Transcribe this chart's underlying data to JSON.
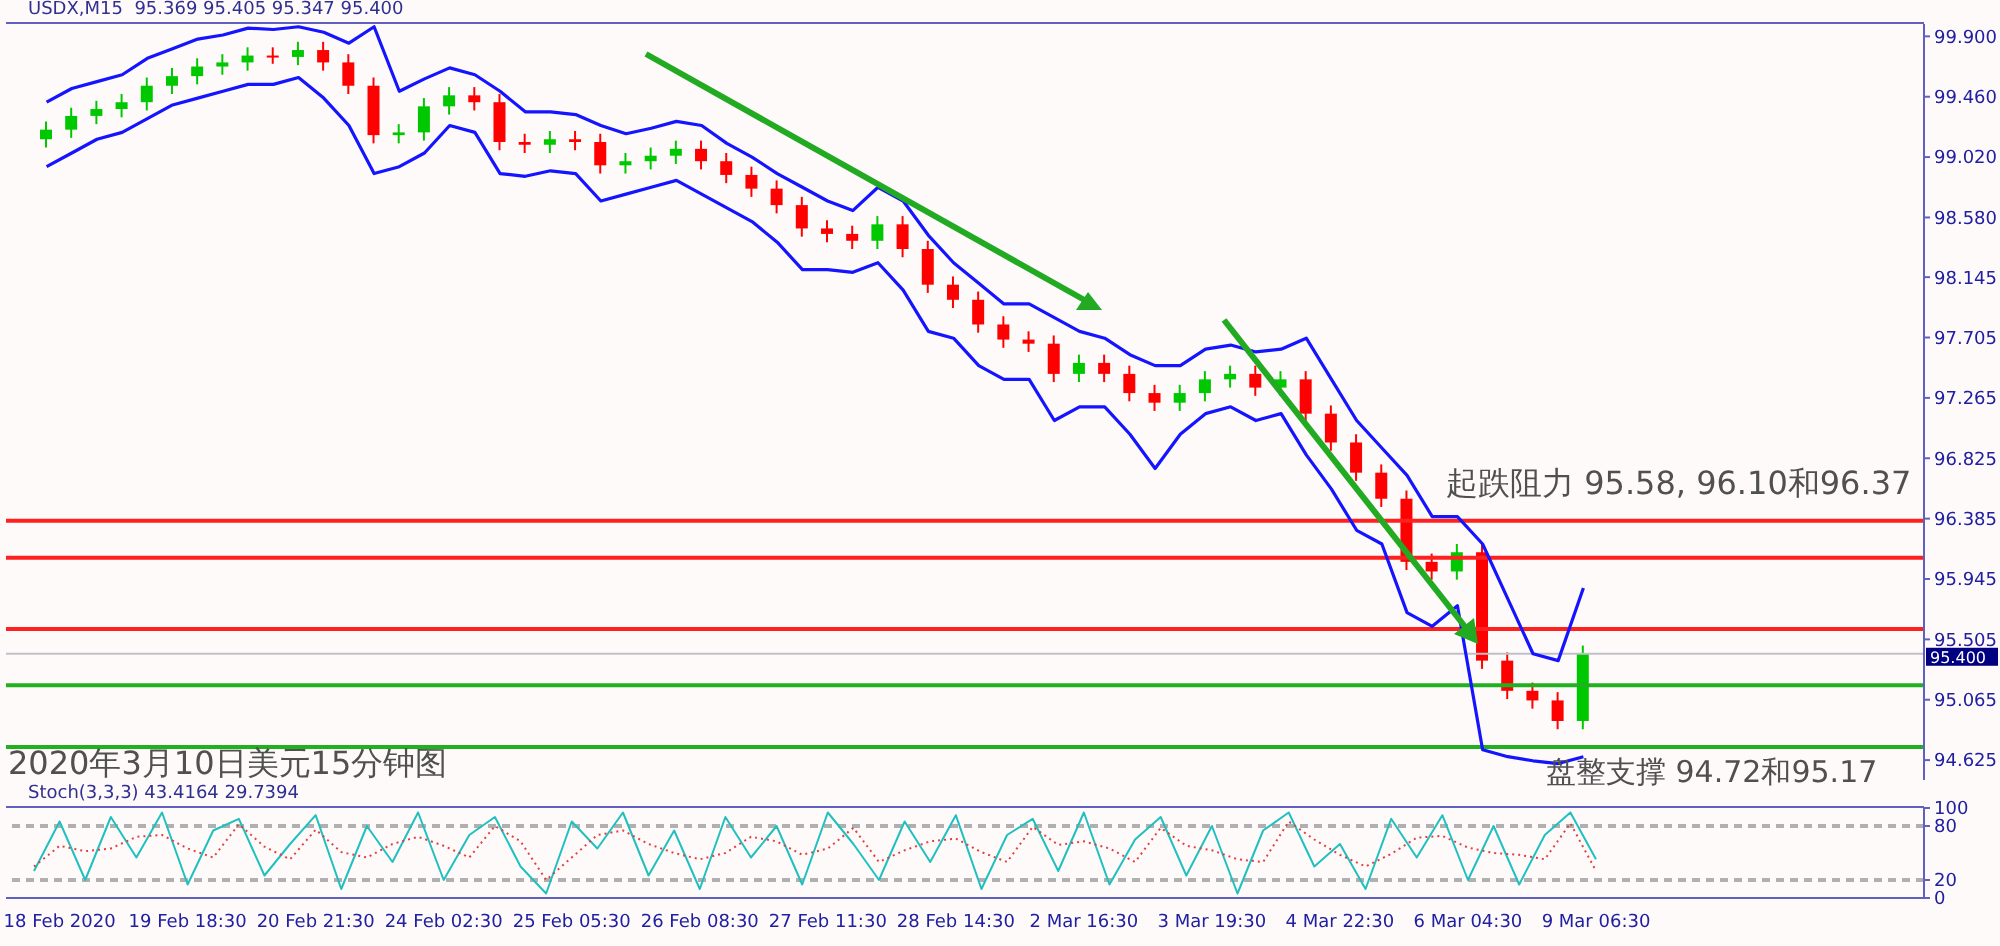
{
  "chart_data": [
    {
      "type": "candlestick",
      "title": "USDX,M15  95.369 95.405 95.347 95.400",
      "categories": [
        null,
        null,
        null,
        null,
        null,
        null,
        null,
        null,
        null,
        null,
        null,
        null,
        null,
        null,
        null,
        null,
        null,
        null,
        null,
        null,
        null,
        null,
        null,
        null,
        null,
        null,
        null,
        null,
        null,
        null,
        null,
        null,
        null,
        null,
        null,
        null,
        null,
        null,
        null,
        null,
        null,
        null,
        null,
        null,
        null,
        null,
        null,
        null,
        null,
        null,
        null,
        null,
        null,
        null,
        null,
        null,
        null,
        null,
        null,
        null,
        null,
        null
      ],
      "ohlc": [
        [
          99.15,
          99.28,
          99.09,
          99.22
        ],
        [
          99.22,
          99.38,
          99.16,
          99.32
        ],
        [
          99.32,
          99.43,
          99.26,
          99.37
        ],
        [
          99.37,
          99.48,
          99.31,
          99.42
        ],
        [
          99.42,
          99.6,
          99.36,
          99.54
        ],
        [
          99.54,
          99.67,
          99.48,
          99.61
        ],
        [
          99.61,
          99.74,
          99.55,
          99.68
        ],
        [
          99.68,
          99.77,
          99.62,
          99.71
        ],
        [
          99.71,
          99.82,
          99.65,
          99.76
        ],
        [
          99.76,
          99.82,
          99.7,
          99.75
        ],
        [
          99.75,
          99.86,
          99.69,
          99.8
        ],
        [
          99.8,
          99.86,
          99.65,
          99.71
        ],
        [
          99.71,
          99.77,
          99.48,
          99.54
        ],
        [
          99.54,
          99.6,
          99.12,
          99.18
        ],
        [
          99.18,
          99.26,
          99.12,
          99.2
        ],
        [
          99.2,
          99.45,
          99.14,
          99.39
        ],
        [
          99.39,
          99.53,
          99.33,
          99.47
        ],
        [
          99.47,
          99.53,
          99.36,
          99.42
        ],
        [
          99.42,
          99.48,
          99.07,
          99.13
        ],
        [
          99.13,
          99.19,
          99.05,
          99.11
        ],
        [
          99.11,
          99.21,
          99.05,
          99.15
        ],
        [
          99.15,
          99.21,
          99.07,
          99.13
        ],
        [
          99.13,
          99.19,
          98.9,
          98.96
        ],
        [
          98.96,
          99.05,
          98.9,
          98.99
        ],
        [
          98.99,
          99.09,
          98.93,
          99.03
        ],
        [
          99.03,
          99.14,
          98.97,
          99.08
        ],
        [
          99.08,
          99.14,
          98.93,
          98.99
        ],
        [
          98.99,
          99.05,
          98.83,
          98.89
        ],
        [
          98.89,
          98.95,
          98.73,
          98.79
        ],
        [
          98.79,
          98.85,
          98.61,
          98.67
        ],
        [
          98.67,
          98.73,
          98.44,
          98.5
        ],
        [
          98.5,
          98.56,
          98.4,
          98.46
        ],
        [
          98.46,
          98.52,
          98.35,
          98.41
        ],
        [
          98.41,
          98.59,
          98.35,
          98.53
        ],
        [
          98.53,
          98.59,
          98.29,
          98.35
        ],
        [
          98.35,
          98.41,
          98.03,
          98.09
        ],
        [
          98.09,
          98.15,
          97.92,
          97.98
        ],
        [
          97.98,
          98.04,
          97.74,
          97.8
        ],
        [
          97.8,
          97.86,
          97.63,
          97.69
        ],
        [
          97.69,
          97.75,
          97.6,
          97.66
        ],
        [
          97.66,
          97.72,
          97.38,
          97.44
        ],
        [
          97.44,
          97.58,
          97.38,
          97.52
        ],
        [
          97.52,
          97.58,
          97.38,
          97.44
        ],
        [
          97.44,
          97.5,
          97.24,
          97.3
        ],
        [
          97.3,
          97.36,
          97.17,
          97.23
        ],
        [
          97.23,
          97.36,
          97.17,
          97.3
        ],
        [
          97.3,
          97.46,
          97.24,
          97.4
        ],
        [
          97.4,
          97.5,
          97.34,
          97.44
        ],
        [
          97.44,
          97.5,
          97.28,
          97.34
        ],
        [
          97.34,
          97.46,
          97.28,
          97.4
        ],
        [
          97.4,
          97.46,
          97.09,
          97.15
        ],
        [
          97.15,
          97.21,
          96.88,
          96.94
        ],
        [
          96.94,
          97.0,
          96.66,
          96.72
        ],
        [
          96.72,
          96.78,
          96.47,
          96.53
        ],
        [
          96.53,
          96.59,
          96.01,
          96.07
        ],
        [
          96.07,
          96.13,
          95.94,
          96.0
        ],
        [
          96.0,
          96.2,
          95.94,
          96.14
        ],
        [
          96.14,
          96.2,
          95.29,
          95.35
        ],
        [
          95.35,
          95.41,
          95.07,
          95.13
        ],
        [
          95.13,
          95.19,
          95.0,
          95.06
        ],
        [
          95.06,
          95.12,
          94.85,
          94.91
        ],
        [
          94.91,
          95.46,
          94.85,
          95.4
        ]
      ],
      "colors": [
        "#00c800",
        "#00c800",
        "#00c800",
        "#00c800",
        "#00c800",
        "#00c800",
        "#00c800",
        "#00c800",
        "#00c800",
        "#ff0000",
        "#00c800",
        "#ff0000",
        "#ff0000",
        "#ff0000",
        "#00c800",
        "#00c800",
        "#00c800",
        "#ff0000",
        "#ff0000",
        "#ff0000",
        "#00c800",
        "#ff0000",
        "#ff0000",
        "#00c800",
        "#00c800",
        "#00c800",
        "#ff0000",
        "#ff0000",
        "#ff0000",
        "#ff0000",
        "#ff0000",
        "#ff0000",
        "#ff0000",
        "#00c800",
        "#ff0000",
        "#ff0000",
        "#ff0000",
        "#ff0000",
        "#ff0000",
        "#ff0000",
        "#ff0000",
        "#00c800",
        "#ff0000",
        "#ff0000",
        "#ff0000",
        "#00c800",
        "#00c800",
        "#00c800",
        "#ff0000",
        "#00c800",
        "#ff0000",
        "#ff0000",
        "#ff0000",
        "#ff0000",
        "#ff0000",
        "#ff0000",
        "#00c800",
        "#ff0000",
        "#ff0000",
        "#ff0000",
        "#ff0000",
        "#00c800"
      ],
      "series": [
        {
          "type": "line",
          "color": "#1414ff",
          "values": [
            99.42,
            99.52,
            99.57,
            99.62,
            99.74,
            99.81,
            99.88,
            99.91,
            99.96,
            99.95,
            99.97,
            99.93,
            99.85,
            99.97,
            99.5,
            99.59,
            99.67,
            99.62,
            99.5,
            99.35,
            99.35,
            99.33,
            99.25,
            99.19,
            99.23,
            99.28,
            99.25,
            99.12,
            99.02,
            98.9,
            98.8,
            98.7,
            98.63,
            98.8,
            98.7,
            98.45,
            98.25,
            98.1,
            97.95,
            97.95,
            97.85,
            97.75,
            97.7,
            97.58,
            97.5,
            97.5,
            97.62,
            97.65,
            97.6,
            97.62,
            97.7,
            97.4,
            97.1,
            96.9,
            96.7,
            96.4,
            96.4,
            96.2,
            95.8,
            95.4,
            95.35,
            95.88
          ]
        },
        {
          "type": "line",
          "color": "#1414ff",
          "values": [
            98.95,
            99.05,
            99.15,
            99.2,
            99.3,
            99.4,
            99.45,
            99.5,
            99.55,
            99.55,
            99.6,
            99.45,
            99.25,
            98.9,
            98.95,
            99.05,
            99.25,
            99.2,
            98.9,
            98.88,
            98.92,
            98.9,
            98.7,
            98.75,
            98.8,
            98.85,
            98.75,
            98.65,
            98.55,
            98.4,
            98.2,
            98.2,
            98.18,
            98.25,
            98.05,
            97.75,
            97.7,
            97.5,
            97.4,
            97.4,
            97.1,
            97.2,
            97.2,
            97.0,
            96.75,
            97.0,
            97.15,
            97.2,
            97.1,
            97.15,
            96.85,
            96.6,
            96.3,
            96.2,
            95.7,
            95.6,
            95.75,
            94.7,
            94.65,
            94.62,
            94.6,
            94.65
          ]
        }
      ],
      "ylim": [
        94.48,
        99.99
      ],
      "yticks": [
        {
          "value": 94.625,
          "label": "94.625"
        },
        {
          "value": 95.065,
          "label": "95.065"
        },
        {
          "value": 95.505,
          "label": "95.505"
        },
        {
          "value": 95.945,
          "label": "95.945"
        },
        {
          "value": 96.385,
          "label": "96.385"
        },
        {
          "value": 96.825,
          "label": "96.825"
        },
        {
          "value": 97.265,
          "label": "97.265"
        },
        {
          "value": 97.705,
          "label": "97.705"
        },
        {
          "value": 98.145,
          "label": "98.145"
        },
        {
          "value": 98.58,
          "label": "98.580"
        },
        {
          "value": 99.02,
          "label": "99.020"
        },
        {
          "value": 99.46,
          "label": "99.460"
        },
        {
          "value": 99.9,
          "label": "99.900"
        }
      ],
      "tick_labels": "y",
      "ref_lines": [
        {
          "axis": "y",
          "value": 96.37,
          "color": "#ff2020"
        },
        {
          "axis": "y",
          "value": 96.1,
          "color": "#ff2020"
        },
        {
          "axis": "y",
          "value": 95.58,
          "color": "#ff2020"
        },
        {
          "axis": "y",
          "value": 95.17,
          "color": "#20b020"
        },
        {
          "axis": "y",
          "value": 94.72,
          "color": "#20b020"
        },
        {
          "axis": "y",
          "value": 95.4,
          "color": "#c0c0c8",
          "label": "95.400"
        }
      ],
      "annotations": [
        "起跌阻力 95.58, 96.10和96.37",
        "盘整支撑 94.72和95.17",
        "2020年3月10日美元15分钟图"
      ]
    },
    {
      "type": "line",
      "title": "Stoch(3,3,3) 43.4164 29.7394",
      "categories": [
        null,
        "18 Feb 2020",
        null,
        null,
        null,
        null,
        "19 Feb 18:30",
        null,
        null,
        null,
        null,
        "20 Feb 21:30",
        null,
        null,
        null,
        null,
        "24 Feb 02:30",
        null,
        null,
        null,
        null,
        "25 Feb 05:30",
        null,
        null,
        null,
        null,
        "26 Feb 08:30",
        null,
        null,
        null,
        null,
        "27 Feb 11:30",
        null,
        null,
        null,
        null,
        "28 Feb 14:30",
        null,
        null,
        null,
        null,
        "2 Mar 16:30",
        null,
        null,
        null,
        null,
        "3 Mar 19:30",
        null,
        null,
        null,
        null,
        "4 Mar 22:30",
        null,
        null,
        null,
        null,
        "6 Mar 04:30",
        null,
        null,
        null,
        null,
        "9 Mar 06:30"
      ],
      "series": [
        {
          "color": "#20c0c0",
          "line_style": "solid",
          "values": [
            30,
            85,
            20,
            90,
            45,
            95,
            15,
            75,
            88,
            25,
            60,
            92,
            10,
            80,
            40,
            95,
            20,
            70,
            90,
            35,
            5,
            85,
            55,
            95,
            25,
            75,
            10,
            90,
            45,
            80,
            15,
            95,
            60,
            20,
            85,
            40,
            92,
            10,
            70,
            88,
            30,
            95,
            15,
            65,
            90,
            25,
            80,
            5,
            75,
            95,
            35,
            60,
            10,
            88,
            45,
            92,
            20,
            80,
            15,
            70,
            95,
            43
          ]
        },
        {
          "color": "#e04040",
          "line_style": "dotted",
          "values": [
            35,
            58,
            52,
            55,
            68,
            70,
            55,
            45,
            82,
            57,
            43,
            76,
            51,
            45,
            60,
            68,
            58,
            45,
            80,
            63,
            20,
            45,
            70,
            75,
            60,
            50,
            43,
            50,
            68,
            63,
            48,
            55,
            78,
            40,
            53,
            63,
            66,
            51,
            40,
            79,
            59,
            63,
            55,
            40,
            78,
            58,
            53,
            43,
            40,
            85,
            65,
            48,
            35,
            49,
            67,
            69,
            56,
            50,
            48,
            43,
            83,
            30
          ]
        }
      ],
      "ylim": [
        0,
        100
      ],
      "yticks": [
        0,
        20,
        80,
        100
      ],
      "ref_lines": [
        {
          "axis": "y",
          "value": 20,
          "color": "#b0b0b0",
          "line_style": "dashed"
        },
        {
          "axis": "y",
          "value": 80,
          "color": "#b0b0b0",
          "line_style": "dashed"
        }
      ]
    }
  ]
}
